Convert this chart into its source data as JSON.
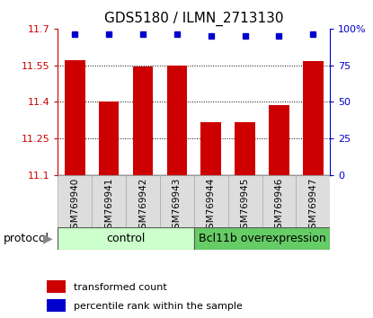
{
  "title": "GDS5180 / ILMN_2713130",
  "samples": [
    "GSM769940",
    "GSM769941",
    "GSM769942",
    "GSM769943",
    "GSM769944",
    "GSM769945",
    "GSM769946",
    "GSM769947"
  ],
  "bar_values": [
    11.57,
    11.4,
    11.545,
    11.55,
    11.315,
    11.315,
    11.385,
    11.565
  ],
  "percentile_values": [
    96,
    96,
    96,
    96,
    95,
    95,
    95,
    96
  ],
  "bar_color": "#cc0000",
  "dot_color": "#0000cc",
  "ylim_left": [
    11.1,
    11.7
  ],
  "ylim_right": [
    0,
    100
  ],
  "yticks_left": [
    11.1,
    11.25,
    11.4,
    11.55,
    11.7
  ],
  "yticks_right": [
    0,
    25,
    50,
    75,
    100
  ],
  "ytick_labels_right": [
    "0",
    "25",
    "50",
    "75",
    "100%"
  ],
  "grid_values": [
    11.25,
    11.4,
    11.55
  ],
  "control_label": "control",
  "overexp_label": "Bcl11b overexpression",
  "protocol_label": "protocol",
  "control_color": "#ccffcc",
  "overexp_color": "#66cc66",
  "xticklabel_bg": "#dddddd",
  "legend_bar_label": "transformed count",
  "legend_dot_label": "percentile rank within the sample",
  "n_control": 4,
  "bar_width": 0.6,
  "title_fontsize": 11,
  "tick_fontsize": 8,
  "label_fontsize": 8.5
}
